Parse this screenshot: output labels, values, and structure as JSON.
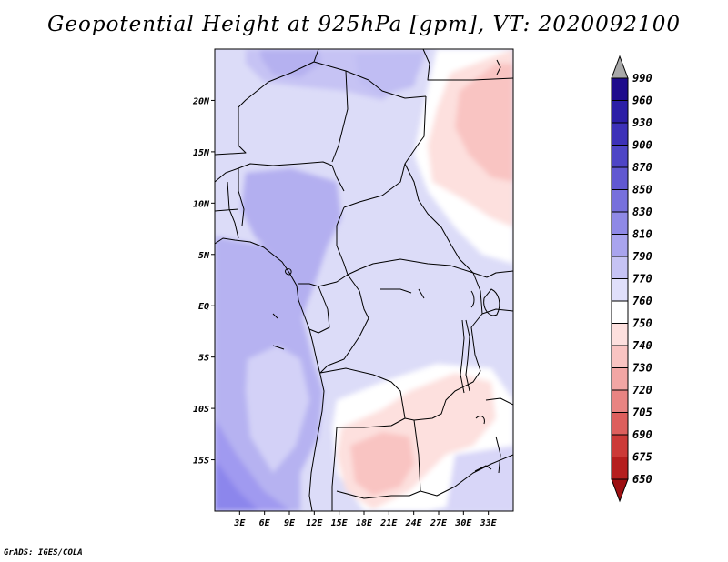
{
  "title": "Geopotential Height at 925hPa [gpm], VT: 2020092100",
  "credit": "GrADS: IGES/COLA",
  "map": {
    "lon_range": [
      0,
      36
    ],
    "lat_range": [
      -20,
      25
    ],
    "lon_ticks": [
      {
        "value": 3,
        "label": "3E"
      },
      {
        "value": 6,
        "label": "6E"
      },
      {
        "value": 9,
        "label": "9E"
      },
      {
        "value": 12,
        "label": "12E"
      },
      {
        "value": 15,
        "label": "15E"
      },
      {
        "value": 18,
        "label": "18E"
      },
      {
        "value": 21,
        "label": "21E"
      },
      {
        "value": 24,
        "label": "24E"
      },
      {
        "value": 27,
        "label": "27E"
      },
      {
        "value": 30,
        "label": "30E"
      },
      {
        "value": 33,
        "label": "33E"
      }
    ],
    "lat_ticks": [
      {
        "value": 20,
        "label": "20N"
      },
      {
        "value": 15,
        "label": "15N"
      },
      {
        "value": 10,
        "label": "10N"
      },
      {
        "value": 5,
        "label": "5N"
      },
      {
        "value": 0,
        "label": "EQ"
      },
      {
        "value": -5,
        "label": "5S"
      },
      {
        "value": -10,
        "label": "10S"
      },
      {
        "value": -15,
        "label": "15S"
      }
    ]
  },
  "colorbar": {
    "levels": [
      "990",
      "960",
      "930",
      "900",
      "870",
      "850",
      "830",
      "810",
      "790",
      "770",
      "760",
      "750",
      "740",
      "730",
      "720",
      "705",
      "690",
      "675",
      "650"
    ],
    "colors": [
      "#1e0b8c",
      "#2c1ea6",
      "#3d31b8",
      "#4e45c6",
      "#6158d1",
      "#7770dc",
      "#8f89e6",
      "#a9a4ee",
      "#c6c3f4",
      "#e0dffa",
      "#ffffff",
      "#fde0de",
      "#f9c4c2",
      "#f2a6a4",
      "#e88482",
      "#dd5f5d",
      "#cc3a38",
      "#b51e1e",
      "#9d0f12"
    ],
    "top_arrow_color": "#a8a8a8"
  }
}
